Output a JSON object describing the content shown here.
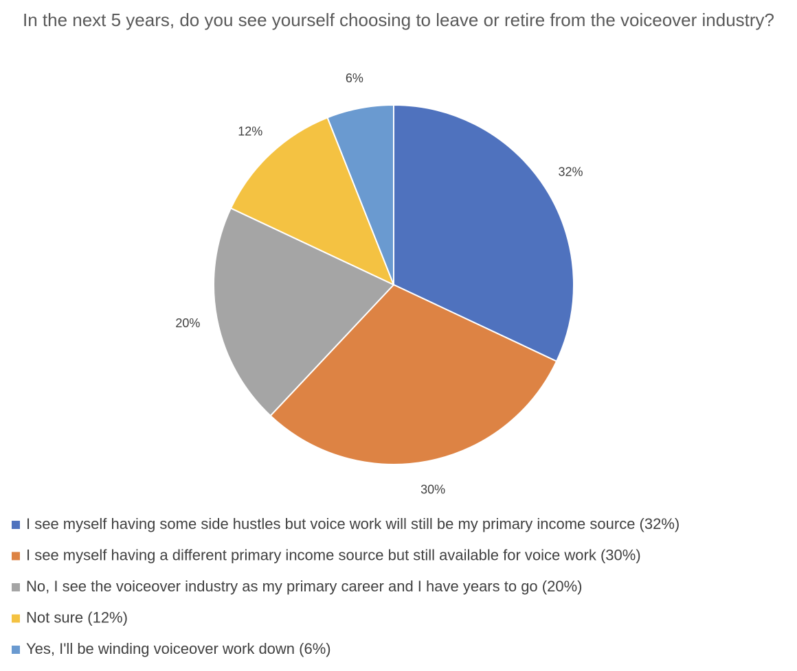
{
  "chart_data": {
    "type": "pie",
    "title": "In the next 5 years, do you see yourself choosing to leave or retire from the voiceover industry?",
    "categories": [
      "I see myself having some side hustles but voice work will still be my primary income source (32%)",
      "I see myself having a different primary income source but still available for voice work (30%)",
      "No, I see the voiceover industry as my primary career and I have years to go (20%)",
      "Not sure (12%)",
      "Yes, I'll be winding voiceover work down (6%)"
    ],
    "series": [
      {
        "values": [
          32,
          30,
          20,
          12,
          6
        ],
        "value_labels": [
          "32%",
          "30%",
          "20%",
          "12%",
          "6%"
        ],
        "colors": [
          "#4f72be",
          "#dd8344",
          "#a5a5a5",
          "#f4c242",
          "#6a9ad0"
        ]
      }
    ],
    "legend": "bottom"
  }
}
